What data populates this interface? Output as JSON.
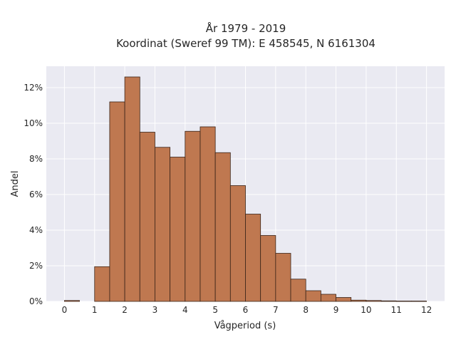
{
  "chart_data": {
    "type": "bar",
    "title": "År 1979 - 2019",
    "subtitle": "Koordinat (Sweref 99 TM): E 458545, N 6161304",
    "xlabel": "Vågperiod (s)",
    "ylabel": "Andel",
    "bin_width": 0.5,
    "xlim": [
      -0.6,
      12.6
    ],
    "ylim": [
      0,
      13.2
    ],
    "x_ticks": [
      0,
      1,
      2,
      3,
      4,
      5,
      6,
      7,
      8,
      9,
      10,
      11,
      12
    ],
    "y_ticks": [
      0,
      2,
      4,
      6,
      8,
      10,
      12
    ],
    "y_tick_labels": [
      "0%",
      "2%",
      "4%",
      "6%",
      "8%",
      "10%",
      "12%"
    ],
    "bins": [
      {
        "x0": 0.0,
        "x1": 0.5,
        "value": 0.05
      },
      {
        "x0": 0.5,
        "x1": 1.0,
        "value": 0.0
      },
      {
        "x0": 1.0,
        "x1": 1.5,
        "value": 1.95
      },
      {
        "x0": 1.5,
        "x1": 2.0,
        "value": 11.2
      },
      {
        "x0": 2.0,
        "x1": 2.5,
        "value": 12.6
      },
      {
        "x0": 2.5,
        "x1": 3.0,
        "value": 9.5
      },
      {
        "x0": 3.0,
        "x1": 3.5,
        "value": 8.65
      },
      {
        "x0": 3.5,
        "x1": 4.0,
        "value": 8.1
      },
      {
        "x0": 4.0,
        "x1": 4.5,
        "value": 9.55
      },
      {
        "x0": 4.5,
        "x1": 5.0,
        "value": 9.8
      },
      {
        "x0": 5.0,
        "x1": 5.5,
        "value": 8.35
      },
      {
        "x0": 5.5,
        "x1": 6.0,
        "value": 6.5
      },
      {
        "x0": 6.0,
        "x1": 6.5,
        "value": 4.9
      },
      {
        "x0": 6.5,
        "x1": 7.0,
        "value": 3.7
      },
      {
        "x0": 7.0,
        "x1": 7.5,
        "value": 2.7
      },
      {
        "x0": 7.5,
        "x1": 8.0,
        "value": 1.25
      },
      {
        "x0": 8.0,
        "x1": 8.5,
        "value": 0.6
      },
      {
        "x0": 8.5,
        "x1": 9.0,
        "value": 0.4
      },
      {
        "x0": 9.0,
        "x1": 9.5,
        "value": 0.22
      },
      {
        "x0": 9.5,
        "x1": 10.0,
        "value": 0.07
      },
      {
        "x0": 10.0,
        "x1": 10.5,
        "value": 0.05
      },
      {
        "x0": 10.5,
        "x1": 11.0,
        "value": 0.03
      },
      {
        "x0": 11.0,
        "x1": 11.5,
        "value": 0.02
      },
      {
        "x0": 11.5,
        "x1": 12.0,
        "value": 0.02
      }
    ],
    "grid": true,
    "colors": {
      "bar_fill": "#bf7850",
      "bar_edge": "#3a2418",
      "plot_background": "#eaeaf2",
      "grid": "#ffffff"
    }
  }
}
